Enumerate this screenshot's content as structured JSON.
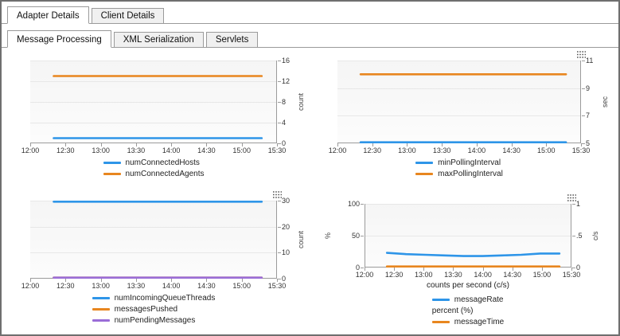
{
  "window": {
    "outer_tabs": [
      {
        "label": "Adapter Details",
        "active": true
      },
      {
        "label": "Client Details",
        "active": false
      }
    ],
    "inner_tabs": [
      {
        "label": "Message Processing",
        "active": true
      },
      {
        "label": "XML Serialization",
        "active": false
      },
      {
        "label": "Servlets",
        "active": false
      }
    ]
  },
  "chart_data": [
    {
      "type": "line",
      "x_domain": [
        0,
        210
      ],
      "x_ticks": [
        {
          "m": 0,
          "t": "12:00"
        },
        {
          "m": 30,
          "t": "12:30"
        },
        {
          "m": 60,
          "t": "13:00"
        },
        {
          "m": 90,
          "t": "13:30"
        },
        {
          "m": 120,
          "t": "14:00"
        },
        {
          "m": 150,
          "t": "14:30"
        },
        {
          "m": 180,
          "t": "15:00"
        },
        {
          "m": 210,
          "t": "15:30"
        }
      ],
      "axes": {
        "right": {
          "label": "count",
          "lim": [
            0,
            16
          ],
          "ticks": [
            {
              "v": 0,
              "t": "0"
            },
            {
              "v": 4,
              "t": "4"
            },
            {
              "v": 8,
              "t": "8"
            },
            {
              "v": 12,
              "t": "12"
            },
            {
              "v": 16,
              "t": "16"
            }
          ]
        }
      },
      "series": [
        {
          "name": "numConnectedHosts",
          "color": "#2e95e8",
          "axis": "right",
          "t_range": [
            20,
            197
          ],
          "values": [
            1,
            1
          ]
        },
        {
          "name": "numConnectedAgents",
          "color": "#e8861f",
          "axis": "right",
          "t_range": [
            20,
            197
          ],
          "values": [
            13,
            13
          ]
        }
      ],
      "legend": [
        {
          "label": "numConnectedHosts",
          "color": "#2e95e8"
        },
        {
          "label": "numConnectedAgents",
          "color": "#e8861f"
        }
      ],
      "xlabel": "",
      "menu_icon": false
    },
    {
      "type": "line",
      "x_domain": [
        0,
        210
      ],
      "x_ticks": [
        {
          "m": 0,
          "t": "12:00"
        },
        {
          "m": 30,
          "t": "12:30"
        },
        {
          "m": 60,
          "t": "13:00"
        },
        {
          "m": 90,
          "t": "13:30"
        },
        {
          "m": 120,
          "t": "14:00"
        },
        {
          "m": 150,
          "t": "14:30"
        },
        {
          "m": 180,
          "t": "15:00"
        },
        {
          "m": 210,
          "t": "15:30"
        }
      ],
      "axes": {
        "right": {
          "label": "sec",
          "lim": [
            5,
            11
          ],
          "ticks": [
            {
              "v": 5,
              "t": "5"
            },
            {
              "v": 7,
              "t": "7"
            },
            {
              "v": 9,
              "t": "9"
            },
            {
              "v": 11,
              "t": "11"
            }
          ]
        }
      },
      "series": [
        {
          "name": "minPollingInterval",
          "color": "#2e95e8",
          "axis": "right",
          "t_range": [
            20,
            197
          ],
          "values": [
            5,
            5
          ]
        },
        {
          "name": "maxPollingInterval",
          "color": "#e8861f",
          "axis": "right",
          "t_range": [
            20,
            197
          ],
          "values": [
            10,
            10
          ]
        }
      ],
      "legend": [
        {
          "label": "minPollingInterval",
          "color": "#2e95e8"
        },
        {
          "label": "maxPollingInterval",
          "color": "#e8861f"
        }
      ],
      "xlabel": "",
      "menu_icon": true
    },
    {
      "type": "line",
      "x_domain": [
        0,
        210
      ],
      "x_ticks": [
        {
          "m": 0,
          "t": "12:00"
        },
        {
          "m": 30,
          "t": "12:30"
        },
        {
          "m": 60,
          "t": "13:00"
        },
        {
          "m": 90,
          "t": "13:30"
        },
        {
          "m": 120,
          "t": "14:00"
        },
        {
          "m": 150,
          "t": "14:30"
        },
        {
          "m": 180,
          "t": "15:00"
        },
        {
          "m": 210,
          "t": "15:30"
        }
      ],
      "axes": {
        "right": {
          "label": "count",
          "lim": [
            0,
            30
          ],
          "ticks": [
            {
              "v": 0,
              "t": "0"
            },
            {
              "v": 10,
              "t": "10"
            },
            {
              "v": 20,
              "t": "20"
            },
            {
              "v": 30,
              "t": "30"
            }
          ]
        }
      },
      "series": [
        {
          "name": "numIncomingQueueThreads",
          "color": "#2e95e8",
          "axis": "right",
          "t_range": [
            20,
            197
          ],
          "values": [
            30,
            30
          ]
        },
        {
          "name": "messagesPushed",
          "color": "#e8861f",
          "axis": "right",
          "t_range": [
            20,
            197
          ],
          "values": [
            0,
            0
          ]
        },
        {
          "name": "numPendingMessages",
          "color": "#9a6dd7",
          "axis": "right",
          "t_range": [
            20,
            197
          ],
          "values": [
            0,
            0
          ]
        }
      ],
      "legend": [
        {
          "label": "numIncomingQueueThreads",
          "color": "#2e95e8"
        },
        {
          "label": "messagesPushed",
          "color": "#e8861f"
        },
        {
          "label": "numPendingMessages",
          "color": "#9a6dd7"
        }
      ],
      "xlabel": "",
      "menu_icon": true
    },
    {
      "type": "line",
      "x_domain": [
        0,
        210
      ],
      "x_ticks": [
        {
          "m": 0,
          "t": "12:00"
        },
        {
          "m": 30,
          "t": "12:30"
        },
        {
          "m": 60,
          "t": "13:00"
        },
        {
          "m": 90,
          "t": "13:30"
        },
        {
          "m": 120,
          "t": "14:00"
        },
        {
          "m": 150,
          "t": "14:30"
        },
        {
          "m": 180,
          "t": "15:00"
        },
        {
          "m": 210,
          "t": "15:30"
        }
      ],
      "axes": {
        "left": {
          "label": "%",
          "lim": [
            0,
            100
          ],
          "ticks": [
            {
              "v": 0,
              "t": "0"
            },
            {
              "v": 50,
              "t": "50"
            },
            {
              "v": 100,
              "t": "100"
            }
          ]
        },
        "right": {
          "label": "c/s",
          "lim": [
            0,
            1
          ],
          "ticks": [
            {
              "v": 0,
              "t": "0"
            },
            {
              "v": 0.5,
              "t": ".5"
            },
            {
              "v": 1,
              "t": "1"
            }
          ]
        }
      },
      "series": [
        {
          "name": "messageRate",
          "color": "#2e95e8",
          "axis": "right",
          "t_range": [
            22,
            197
          ],
          "values": [
            0.23,
            0.21,
            0.2,
            0.19,
            0.18,
            0.18,
            0.19,
            0.2,
            0.22,
            0.22
          ]
        },
        {
          "name": "messageTime",
          "color": "#e8861f",
          "axis": "left",
          "t_range": [
            22,
            197
          ],
          "values": [
            0,
            0
          ]
        }
      ],
      "legend": [
        {
          "label": "messageRate",
          "color": "#2e95e8"
        },
        {
          "label": "percent (%)",
          "color": null
        },
        {
          "label": "messageTime",
          "color": "#e8861f"
        }
      ],
      "xlabel": "counts per second (c/s)",
      "menu_icon": true
    }
  ]
}
